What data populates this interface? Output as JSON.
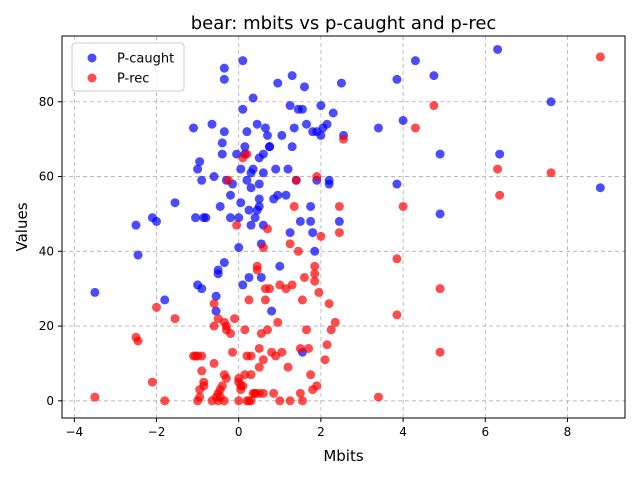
{
  "chart_data": {
    "type": "scatter",
    "title": "bear: mbits vs p-caught and p-rec",
    "xlabel": "Mbits",
    "ylabel": "Values",
    "xlim": [
      -4.3,
      9.4
    ],
    "ylim": [
      -4.6,
      97.6
    ],
    "xticks": [
      -4,
      -2,
      0,
      2,
      4,
      6,
      8
    ],
    "yticks": [
      0,
      20,
      40,
      60,
      80
    ],
    "grid": true,
    "legend_position": "top-left",
    "series": [
      {
        "name": "P-caught",
        "color": "#0000ff",
        "points": [
          [
            -3.5,
            29
          ],
          [
            -2.5,
            47
          ],
          [
            -2.45,
            39
          ],
          [
            -2.1,
            49
          ],
          [
            -2.0,
            48
          ],
          [
            -1.8,
            27
          ],
          [
            -1.55,
            53
          ],
          [
            -1.1,
            73
          ],
          [
            -1.05,
            49
          ],
          [
            -1.0,
            62
          ],
          [
            -1.0,
            31
          ],
          [
            -0.95,
            64
          ],
          [
            -0.9,
            30
          ],
          [
            -0.9,
            59
          ],
          [
            -0.85,
            49
          ],
          [
            -0.8,
            49
          ],
          [
            -0.65,
            74
          ],
          [
            -0.6,
            60
          ],
          [
            -0.55,
            24
          ],
          [
            -0.55,
            28
          ],
          [
            -0.5,
            34
          ],
          [
            -0.5,
            35
          ],
          [
            -0.45,
            52
          ],
          [
            -0.4,
            66
          ],
          [
            -0.4,
            69
          ],
          [
            -0.35,
            72
          ],
          [
            -0.35,
            86
          ],
          [
            -0.35,
            89
          ],
          [
            -0.35,
            37
          ],
          [
            -0.3,
            59
          ],
          [
            -0.2,
            55
          ],
          [
            -0.2,
            49
          ],
          [
            -0.15,
            58
          ],
          [
            -0.05,
            66
          ],
          [
            0.0,
            41
          ],
          [
            0.0,
            49
          ],
          [
            0.05,
            53
          ],
          [
            0.05,
            62
          ],
          [
            0.1,
            78
          ],
          [
            0.1,
            91
          ],
          [
            0.1,
            31
          ],
          [
            0.15,
            68
          ],
          [
            0.15,
            66
          ],
          [
            0.2,
            72
          ],
          [
            0.2,
            59
          ],
          [
            0.25,
            51
          ],
          [
            0.25,
            33
          ],
          [
            0.3,
            57
          ],
          [
            0.3,
            61
          ],
          [
            0.3,
            47
          ],
          [
            0.35,
            81
          ],
          [
            0.35,
            62
          ],
          [
            0.4,
            49
          ],
          [
            0.45,
            51
          ],
          [
            0.45,
            74
          ],
          [
            0.5,
            54
          ],
          [
            0.5,
            58
          ],
          [
            0.5,
            65
          ],
          [
            0.5,
            52
          ],
          [
            0.55,
            42
          ],
          [
            0.55,
            33
          ],
          [
            0.6,
            47
          ],
          [
            0.6,
            61
          ],
          [
            0.6,
            66
          ],
          [
            0.65,
            73
          ],
          [
            0.7,
            71
          ],
          [
            0.75,
            68
          ],
          [
            0.75,
            68
          ],
          [
            0.8,
            24
          ],
          [
            0.85,
            54
          ],
          [
            0.9,
            62
          ],
          [
            0.95,
            55
          ],
          [
            0.95,
            85
          ],
          [
            1.0,
            36
          ],
          [
            1.05,
            71
          ],
          [
            1.15,
            55
          ],
          [
            1.2,
            62
          ],
          [
            1.25,
            79
          ],
          [
            1.25,
            45
          ],
          [
            1.3,
            68
          ],
          [
            1.3,
            87
          ],
          [
            1.35,
            73
          ],
          [
            1.4,
            59
          ],
          [
            1.45,
            78
          ],
          [
            1.5,
            48
          ],
          [
            1.55,
            13
          ],
          [
            1.55,
            78
          ],
          [
            1.6,
            84
          ],
          [
            1.65,
            74
          ],
          [
            1.75,
            52
          ],
          [
            1.75,
            48
          ],
          [
            1.8,
            45
          ],
          [
            1.8,
            72
          ],
          [
            1.85,
            40
          ],
          [
            1.9,
            59
          ],
          [
            1.9,
            72
          ],
          [
            2.0,
            79
          ],
          [
            2.0,
            71
          ],
          [
            2.05,
            73
          ],
          [
            2.15,
            74
          ],
          [
            2.2,
            58
          ],
          [
            2.2,
            59
          ],
          [
            2.3,
            77
          ],
          [
            2.45,
            48
          ],
          [
            2.5,
            85
          ],
          [
            2.55,
            71
          ],
          [
            3.4,
            73
          ],
          [
            3.85,
            86
          ],
          [
            3.85,
            58
          ],
          [
            4.0,
            75
          ],
          [
            4.3,
            91
          ],
          [
            4.75,
            87
          ],
          [
            4.9,
            66
          ],
          [
            4.9,
            50
          ],
          [
            6.3,
            94
          ],
          [
            6.35,
            66
          ],
          [
            7.6,
            80
          ],
          [
            8.8,
            57
          ]
        ]
      },
      {
        "name": "P-rec",
        "color": "#ff0000",
        "points": [
          [
            -3.5,
            1
          ],
          [
            -2.5,
            17
          ],
          [
            -2.45,
            16
          ],
          [
            -2.1,
            5
          ],
          [
            -2.0,
            25
          ],
          [
            -1.8,
            0
          ],
          [
            -1.55,
            22
          ],
          [
            -1.1,
            12
          ],
          [
            -1.05,
            12
          ],
          [
            -1.0,
            12
          ],
          [
            -1.0,
            0
          ],
          [
            -0.95,
            1
          ],
          [
            -0.95,
            3
          ],
          [
            -0.9,
            12
          ],
          [
            -0.9,
            8
          ],
          [
            -0.85,
            4
          ],
          [
            -0.85,
            5
          ],
          [
            -0.65,
            0
          ],
          [
            -0.6,
            26
          ],
          [
            -0.6,
            20
          ],
          [
            -0.6,
            10
          ],
          [
            -0.55,
            1
          ],
          [
            -0.5,
            0
          ],
          [
            -0.5,
            22
          ],
          [
            -0.5,
            2
          ],
          [
            -0.45,
            1
          ],
          [
            -0.45,
            3
          ],
          [
            -0.4,
            4
          ],
          [
            -0.35,
            0
          ],
          [
            -0.35,
            21
          ],
          [
            -0.35,
            7
          ],
          [
            -0.3,
            6
          ],
          [
            -0.3,
            20
          ],
          [
            -0.3,
            19
          ],
          [
            -0.25,
            59
          ],
          [
            -0.2,
            18
          ],
          [
            -0.15,
            13
          ],
          [
            -0.1,
            22
          ],
          [
            -0.05,
            47
          ],
          [
            0.0,
            0
          ],
          [
            0.0,
            6
          ],
          [
            0.0,
            5
          ],
          [
            0.05,
            3
          ],
          [
            0.05,
            4
          ],
          [
            0.1,
            65
          ],
          [
            0.1,
            4
          ],
          [
            0.15,
            7
          ],
          [
            0.15,
            19
          ],
          [
            0.2,
            0
          ],
          [
            0.2,
            12
          ],
          [
            0.2,
            66
          ],
          [
            0.25,
            0
          ],
          [
            0.25,
            27
          ],
          [
            0.3,
            0
          ],
          [
            0.3,
            12
          ],
          [
            0.3,
            7
          ],
          [
            0.35,
            2
          ],
          [
            0.4,
            2
          ],
          [
            0.4,
            2
          ],
          [
            0.45,
            36
          ],
          [
            0.45,
            35
          ],
          [
            0.5,
            9
          ],
          [
            0.5,
            14
          ],
          [
            0.5,
            2
          ],
          [
            0.55,
            18
          ],
          [
            0.6,
            11
          ],
          [
            0.6,
            41
          ],
          [
            0.6,
            2
          ],
          [
            0.65,
            30
          ],
          [
            0.65,
            27
          ],
          [
            0.7,
            46
          ],
          [
            0.7,
            19
          ],
          [
            0.75,
            30
          ],
          [
            0.8,
            13
          ],
          [
            0.85,
            2
          ],
          [
            0.9,
            12
          ],
          [
            0.95,
            21
          ],
          [
            1.0,
            0
          ],
          [
            1.0,
            31
          ],
          [
            1.05,
            13
          ],
          [
            1.15,
            30
          ],
          [
            1.2,
            9
          ],
          [
            1.25,
            0
          ],
          [
            1.25,
            42
          ],
          [
            1.3,
            31
          ],
          [
            1.35,
            52
          ],
          [
            1.4,
            59
          ],
          [
            1.45,
            40
          ],
          [
            1.5,
            2
          ],
          [
            1.5,
            14
          ],
          [
            1.55,
            27
          ],
          [
            1.55,
            0
          ],
          [
            1.6,
            33
          ],
          [
            1.65,
            19
          ],
          [
            1.7,
            14
          ],
          [
            1.75,
            7
          ],
          [
            1.8,
            3
          ],
          [
            1.85,
            36
          ],
          [
            1.85,
            34
          ],
          [
            1.85,
            32
          ],
          [
            1.9,
            4
          ],
          [
            1.9,
            60
          ],
          [
            1.95,
            29
          ],
          [
            2.0,
            44
          ],
          [
            2.1,
            11
          ],
          [
            2.15,
            15
          ],
          [
            2.2,
            26
          ],
          [
            2.25,
            19
          ],
          [
            2.35,
            21
          ],
          [
            2.45,
            52
          ],
          [
            2.45,
            45
          ],
          [
            2.55,
            70
          ],
          [
            3.4,
            1
          ],
          [
            3.85,
            38
          ],
          [
            3.85,
            23
          ],
          [
            4.0,
            52
          ],
          [
            4.3,
            73
          ],
          [
            4.75,
            79
          ],
          [
            4.9,
            30
          ],
          [
            4.9,
            13
          ],
          [
            6.3,
            62
          ],
          [
            6.35,
            55
          ],
          [
            7.6,
            61
          ],
          [
            8.8,
            92
          ]
        ]
      }
    ]
  }
}
